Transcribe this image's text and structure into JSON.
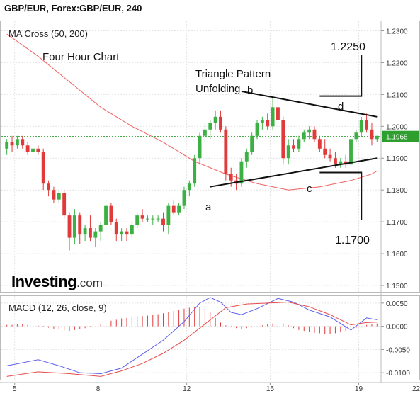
{
  "header": {
    "title": "GBP/EUR, Forex:GBP/EUR, 240"
  },
  "logo": {
    "brand": "Investing",
    "domain": ".com"
  },
  "panels": {
    "price": {
      "indicator": "MA Cross (50, 200)",
      "current_price": "1.1968"
    },
    "macd": {
      "label": "MACD (12, 26, close, 9)"
    }
  },
  "annotations": {
    "chart_label": "Four Hour Chart",
    "pattern_line1": "Triangle Pattern",
    "pattern_line2": "Unfolding",
    "point_a": "a",
    "point_b": "b",
    "point_c": "c",
    "point_d": "d",
    "target_up": "1.2250",
    "target_down": "1.1700"
  },
  "colors": {
    "up_candle": "#3cb043",
    "down_candle": "#e03a3a",
    "ma_line": "#f06060",
    "macd_line": "#5b5bef",
    "signal_line": "#e84a4a",
    "current_price_badge": "#2e9e2e",
    "grid": "#e4e4e4"
  },
  "chart_data": [
    {
      "type": "candlestick",
      "title": "MA Cross (50, 200)",
      "x_tick_labels": [
        "5",
        "8",
        "12",
        "15",
        "19",
        "22"
      ],
      "y_ticks": [
        1.15,
        1.16,
        1.17,
        1.18,
        1.19,
        1.2,
        1.21,
        1.22,
        1.23
      ],
      "y_tick_labels": [
        "1.1500",
        "1.1600",
        "1.1700",
        "1.1800",
        "1.1900",
        "1.2000",
        "1.2100",
        "1.2200",
        "1.2300"
      ],
      "ylim": [
        1.148,
        1.233
      ],
      "grid": true,
      "candles": [
        [
          1.193,
          1.196,
          1.191,
          1.195
        ],
        [
          1.195,
          1.197,
          1.192,
          1.194
        ],
        [
          1.194,
          1.197,
          1.193,
          1.196
        ],
        [
          1.196,
          1.197,
          1.193,
          1.194
        ],
        [
          1.194,
          1.195,
          1.191,
          1.192
        ],
        [
          1.192,
          1.194,
          1.191,
          1.193
        ],
        [
          1.193,
          1.194,
          1.191,
          1.192
        ],
        [
          1.192,
          1.193,
          1.18,
          1.182
        ],
        [
          1.182,
          1.183,
          1.178,
          1.18
        ],
        [
          1.18,
          1.181,
          1.176,
          1.177
        ],
        [
          1.177,
          1.18,
          1.176,
          1.179
        ],
        [
          1.179,
          1.18,
          1.171,
          1.172
        ],
        [
          1.172,
          1.173,
          1.161,
          1.165
        ],
        [
          1.165,
          1.174,
          1.163,
          1.172
        ],
        [
          1.172,
          1.173,
          1.163,
          1.166
        ],
        [
          1.166,
          1.169,
          1.164,
          1.168
        ],
        [
          1.168,
          1.172,
          1.164,
          1.165
        ],
        [
          1.165,
          1.168,
          1.162,
          1.167
        ],
        [
          1.167,
          1.17,
          1.164,
          1.169
        ],
        [
          1.169,
          1.177,
          1.168,
          1.175
        ],
        [
          1.175,
          1.176,
          1.169,
          1.17
        ],
        [
          1.17,
          1.171,
          1.164,
          1.166
        ],
        [
          1.166,
          1.168,
          1.164,
          1.167
        ],
        [
          1.167,
          1.168,
          1.164,
          1.166
        ],
        [
          1.166,
          1.17,
          1.165,
          1.169
        ],
        [
          1.169,
          1.173,
          1.168,
          1.172
        ],
        [
          1.172,
          1.174,
          1.17,
          1.171
        ],
        [
          1.171,
          1.172,
          1.17,
          1.171
        ],
        [
          1.171,
          1.172,
          1.169,
          1.171
        ],
        [
          1.171,
          1.172,
          1.17,
          1.171
        ],
        [
          1.171,
          1.173,
          1.167,
          1.169
        ],
        [
          1.169,
          1.176,
          1.166,
          1.175
        ],
        [
          1.175,
          1.177,
          1.172,
          1.173
        ],
        [
          1.173,
          1.176,
          1.172,
          1.175
        ],
        [
          1.175,
          1.181,
          1.174,
          1.18
        ],
        [
          1.18,
          1.183,
          1.178,
          1.182
        ],
        [
          1.182,
          1.191,
          1.181,
          1.19
        ],
        [
          1.19,
          1.198,
          1.188,
          1.197
        ],
        [
          1.197,
          1.201,
          1.195,
          1.199
        ],
        [
          1.199,
          1.202,
          1.196,
          1.201
        ],
        [
          1.201,
          1.205,
          1.199,
          1.203
        ],
        [
          1.203,
          1.205,
          1.198,
          1.199
        ],
        [
          1.199,
          1.2,
          1.183,
          1.185
        ],
        [
          1.185,
          1.187,
          1.181,
          1.183
        ],
        [
          1.183,
          1.185,
          1.18,
          1.182
        ],
        [
          1.182,
          1.19,
          1.181,
          1.189
        ],
        [
          1.189,
          1.193,
          1.187,
          1.192
        ],
        [
          1.192,
          1.198,
          1.191,
          1.197
        ],
        [
          1.197,
          1.202,
          1.196,
          1.201
        ],
        [
          1.201,
          1.203,
          1.199,
          1.202
        ],
        [
          1.202,
          1.204,
          1.199,
          1.2
        ],
        [
          1.2,
          1.209,
          1.199,
          1.206
        ],
        [
          1.206,
          1.21,
          1.201,
          1.202
        ],
        [
          1.202,
          1.203,
          1.188,
          1.19
        ],
        [
          1.19,
          1.196,
          1.188,
          1.194
        ],
        [
          1.194,
          1.196,
          1.192,
          1.193
        ],
        [
          1.193,
          1.197,
          1.192,
          1.196
        ],
        [
          1.196,
          1.199,
          1.195,
          1.198
        ],
        [
          1.198,
          1.2,
          1.196,
          1.199
        ],
        [
          1.199,
          1.2,
          1.195,
          1.196
        ],
        [
          1.196,
          1.197,
          1.192,
          1.193
        ],
        [
          1.193,
          1.196,
          1.19,
          1.191
        ],
        [
          1.191,
          1.193,
          1.189,
          1.19
        ],
        [
          1.19,
          1.192,
          1.187,
          1.188
        ],
        [
          1.188,
          1.19,
          1.187,
          1.189
        ],
        [
          1.189,
          1.191,
          1.187,
          1.188
        ],
        [
          1.188,
          1.197,
          1.187,
          1.196
        ],
        [
          1.196,
          1.199,
          1.195,
          1.198
        ],
        [
          1.198,
          1.203,
          1.197,
          1.202
        ],
        [
          1.202,
          1.204,
          1.198,
          1.199
        ],
        [
          1.199,
          1.201,
          1.194,
          1.196
        ],
        [
          1.196,
          1.197,
          1.195,
          1.197
        ]
      ],
      "ma_line": [
        [
          0,
          1.229
        ],
        [
          6,
          1.222
        ],
        [
          12,
          1.214
        ],
        [
          18,
          1.206
        ],
        [
          24,
          1.2
        ],
        [
          30,
          1.195
        ],
        [
          36,
          1.189
        ],
        [
          42,
          1.185
        ],
        [
          48,
          1.182
        ],
        [
          54,
          1.18
        ],
        [
          60,
          1.181
        ],
        [
          66,
          1.183
        ],
        [
          70,
          1.185
        ],
        [
          71,
          1.186
        ]
      ],
      "current_price": 1.1968,
      "annotations": {
        "triangle_upper": [
          [
            45,
            1.211
          ],
          [
            71,
            1.203
          ]
        ],
        "triangle_lower": [
          [
            39,
            1.181
          ],
          [
            71,
            1.19
          ]
        ],
        "target_up_line": [
          [
            60,
            1.2095
          ],
          [
            68,
            1.2095
          ],
          [
            68,
            1.2225
          ]
        ],
        "target_down_line": [
          [
            60,
            1.1855
          ],
          [
            68,
            1.1855
          ],
          [
            68,
            1.1705
          ]
        ],
        "point_positions": {
          "a": [
            39,
            1.179
          ],
          "b": [
            45,
            1.212
          ],
          "c": [
            59,
            1.183
          ],
          "d": [
            62,
            1.207
          ]
        }
      }
    },
    {
      "type": "bar_line",
      "title": "MACD (12, 26, close, 9)",
      "y_ticks": [
        -0.01,
        -0.005,
        0.0,
        0.005
      ],
      "y_tick_labels": [
        "-0.0100",
        "-0.0050",
        "0.0000",
        "0.0050"
      ],
      "ylim": [
        -0.0115,
        0.0065
      ],
      "histogram": [
        0.0003,
        0.0003,
        0.0004,
        0.0004,
        0.0003,
        0.0002,
        0.0002,
        0.0001,
        -0.0003,
        -0.0005,
        -0.0007,
        -0.0009,
        -0.001,
        -0.0008,
        -0.0006,
        -0.0004,
        -0.0002,
        0.0,
        0.0004,
        0.0008,
        0.0012,
        0.0014,
        0.0017,
        0.0018,
        0.002,
        0.0021,
        0.0022,
        0.0023,
        0.0024,
        0.0026,
        0.0028,
        0.003,
        0.0033,
        0.0036,
        0.0038,
        0.004,
        0.0042,
        0.0041,
        0.0038,
        0.003,
        0.0018,
        0.0008,
        0.0002,
        -0.0002,
        -0.0004,
        -0.0005,
        -0.0004,
        -0.0002,
        0.0,
        0.0002,
        0.0004,
        0.0006,
        0.0008,
        0.0006,
        0.0002,
        -0.0004,
        -0.0008,
        -0.001,
        -0.0012,
        -0.0014,
        -0.0015,
        -0.0016,
        -0.0016,
        -0.0015,
        -0.0013,
        -0.001,
        -0.0007,
        -0.0004,
        0.0,
        0.0003,
        0.0005,
        0.0006
      ],
      "macd_line": [
        [
          0,
          -0.0085
        ],
        [
          6,
          -0.0072
        ],
        [
          10,
          -0.0085
        ],
        [
          14,
          -0.01
        ],
        [
          18,
          -0.0102
        ],
        [
          22,
          -0.009
        ],
        [
          26,
          -0.006
        ],
        [
          30,
          -0.003
        ],
        [
          34,
          0.001
        ],
        [
          37,
          0.005
        ],
        [
          39,
          0.0062
        ],
        [
          41,
          0.0052
        ],
        [
          43,
          0.003
        ],
        [
          45,
          0.0025
        ],
        [
          48,
          0.0038
        ],
        [
          52,
          0.006
        ],
        [
          55,
          0.0052
        ],
        [
          58,
          0.0035
        ],
        [
          62,
          0.002
        ],
        [
          66,
          -0.0008
        ],
        [
          69,
          0.0018
        ],
        [
          71,
          0.0014
        ]
      ],
      "signal_line": [
        [
          0,
          -0.0108
        ],
        [
          6,
          -0.0098
        ],
        [
          12,
          -0.0102
        ],
        [
          18,
          -0.0108
        ],
        [
          22,
          -0.0096
        ],
        [
          26,
          -0.008
        ],
        [
          30,
          -0.0058
        ],
        [
          34,
          -0.003
        ],
        [
          38,
          0.0005
        ],
        [
          42,
          0.004
        ],
        [
          46,
          0.0048
        ],
        [
          50,
          0.005
        ],
        [
          54,
          0.0052
        ],
        [
          58,
          0.0042
        ],
        [
          62,
          0.0025
        ],
        [
          66,
          0.0003
        ],
        [
          69,
          0.0008
        ],
        [
          71,
          0.0009
        ]
      ],
      "grid": true
    }
  ]
}
